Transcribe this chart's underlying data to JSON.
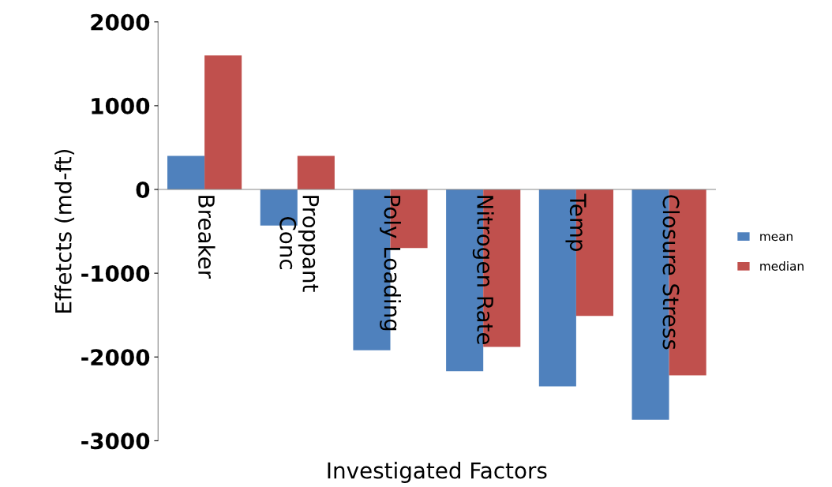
{
  "chart_data": {
    "type": "bar",
    "xlabel": "Investigated Factors",
    "ylabel": "Effetcts (md-ft)",
    "categories": [
      "Breaker",
      "Proppant\nConc",
      "Poly Loading",
      "Nitrogen Rate",
      "Temp",
      "Closure Stress"
    ],
    "series": [
      {
        "name": "mean",
        "color": "#4f81bd",
        "values": [
          400,
          -430,
          -1920,
          -2170,
          -2350,
          -2750
        ]
      },
      {
        "name": "median",
        "color": "#c0504d",
        "values": [
          1600,
          400,
          -700,
          -1880,
          -1510,
          -2220
        ]
      }
    ],
    "ylim": [
      -3000,
      2000
    ],
    "yticks": [
      -3000,
      -2000,
      -1000,
      0,
      1000,
      2000
    ],
    "grid": false,
    "legend": "right"
  }
}
